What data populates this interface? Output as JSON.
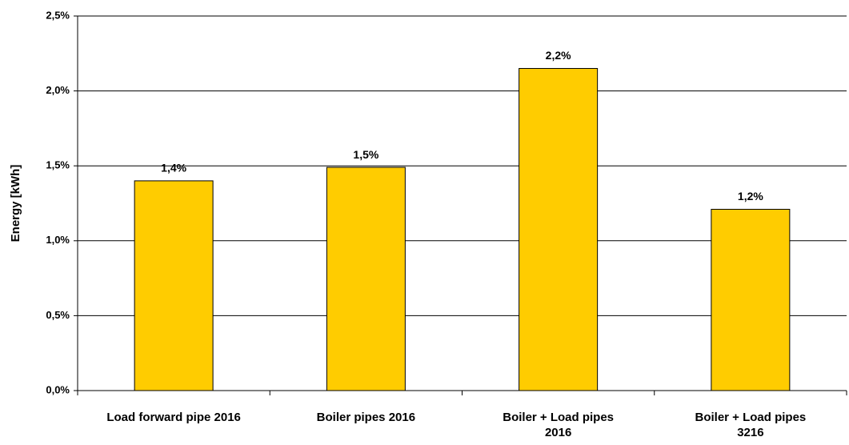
{
  "chart_data": {
    "type": "bar",
    "y_label": "Energy [kWh]",
    "categories": [
      "Load forward pipe 2016",
      "Boiler pipes 2016",
      "Boiler + Load pipes\n2016",
      "Boiler + Load pipes\n3216"
    ],
    "values": [
      1.4,
      1.49,
      2.15,
      1.21
    ],
    "value_labels": [
      "1,4%",
      "1,5%",
      "2,2%",
      "1,2%"
    ],
    "color": "#ffcc00",
    "ylim": [
      0,
      2.5
    ],
    "yticks": [
      {
        "value": 0,
        "label": "0,0%"
      },
      {
        "value": 0.5,
        "label": "0,5%"
      },
      {
        "value": 1.0,
        "label": "1,0%"
      },
      {
        "value": 1.5,
        "label": "1,5%"
      },
      {
        "value": 2.0,
        "label": "2,0%"
      },
      {
        "value": 2.5,
        "label": "2,5%"
      }
    ],
    "grid": true
  }
}
